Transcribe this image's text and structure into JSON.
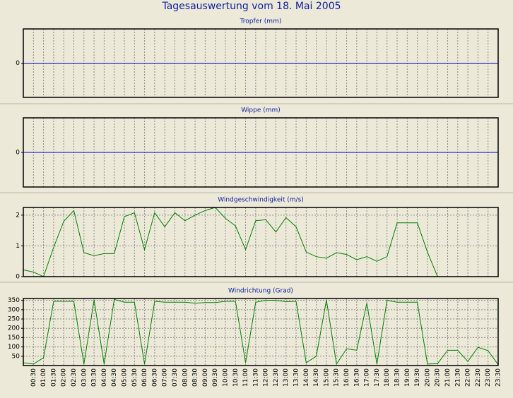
{
  "title": "Tagesauswertung vom 18. Mai 2005",
  "chart_data": [
    {
      "type": "line",
      "title": "Tropfer (mm)",
      "color": "#0000c0",
      "values": [
        0,
        0,
        0,
        0,
        0,
        0,
        0,
        0,
        0,
        0,
        0,
        0,
        0,
        0,
        0,
        0,
        0,
        0,
        0,
        0,
        0,
        0,
        0,
        0,
        0,
        0,
        0,
        0,
        0,
        0,
        0,
        0,
        0,
        0,
        0,
        0,
        0,
        0,
        0,
        0,
        0,
        0,
        0,
        0,
        0,
        0,
        0,
        0
      ],
      "ylim": [
        -1,
        1
      ],
      "yticks": [
        0
      ],
      "grid": true
    },
    {
      "type": "line",
      "title": "Wippe (mm)",
      "color": "#0000c0",
      "values": [
        0,
        0,
        0,
        0,
        0,
        0,
        0,
        0,
        0,
        0,
        0,
        0,
        0,
        0,
        0,
        0,
        0,
        0,
        0,
        0,
        0,
        0,
        0,
        0,
        0,
        0,
        0,
        0,
        0,
        0,
        0,
        0,
        0,
        0,
        0,
        0,
        0,
        0,
        0,
        0,
        0,
        0,
        0,
        0,
        0,
        0,
        0,
        0
      ],
      "ylim": [
        -1,
        1
      ],
      "yticks": [
        0
      ],
      "grid": true
    },
    {
      "type": "line",
      "title": "Windgeschwindigkeit (m/s)",
      "color": "#008000",
      "values": [
        0.22,
        0.15,
        0,
        0.95,
        1.8,
        2.15,
        0.78,
        0.68,
        0.75,
        0.75,
        1.95,
        2.08,
        0.88,
        2.08,
        1.62,
        2.08,
        1.82,
        2.0,
        2.15,
        2.25,
        1.9,
        1.65,
        0.88,
        1.82,
        1.85,
        1.45,
        1.92,
        1.62,
        0.8,
        0.65,
        0.6,
        0.78,
        0.72,
        0.55,
        0.65,
        0.5,
        0.65,
        1.75,
        1.75,
        1.75,
        0.8,
        0,
        0,
        0,
        0,
        0,
        0,
        0
      ],
      "ylim": [
        0,
        2.25
      ],
      "yticks": [
        0,
        1,
        2
      ],
      "grid": true
    },
    {
      "type": "line",
      "title": "Windrichtung (Grad)",
      "color": "#008000",
      "categories": [
        null,
        "00:30",
        "01:00",
        "01:30",
        "02:00",
        "02:30",
        "03:00",
        "03:30",
        "04:00",
        "04:30",
        "05:00",
        "05:30",
        "06:00",
        "06:30",
        "07:00",
        "07:30",
        "08:00",
        "08:30",
        "09:00",
        "09:30",
        "10:00",
        "10:30",
        "11:00",
        "11:30",
        "12:00",
        "12:30",
        "13:00",
        "13:30",
        "14:00",
        "14:30",
        "15:00",
        "15:30",
        "16:00",
        "16:30",
        "17:00",
        "17:30",
        "18:00",
        "18:30",
        "19:00",
        "19:30",
        "20:00",
        "20:30",
        "21:00",
        "21:30",
        "22:00",
        "22:30",
        "23:00",
        "23:30"
      ],
      "values": [
        15,
        8,
        42,
        345,
        345,
        345,
        8,
        352,
        8,
        355,
        340,
        340,
        8,
        345,
        340,
        340,
        340,
        335,
        338,
        338,
        345,
        345,
        15,
        340,
        350,
        350,
        343,
        345,
        15,
        50,
        352,
        8,
        90,
        82,
        335,
        8,
        350,
        340,
        340,
        340,
        8,
        10,
        82,
        82,
        22,
        98,
        80,
        5
      ],
      "ylim": [
        0,
        360
      ],
      "yticks": [
        50,
        100,
        150,
        200,
        250,
        300,
        350
      ],
      "grid": true
    }
  ]
}
